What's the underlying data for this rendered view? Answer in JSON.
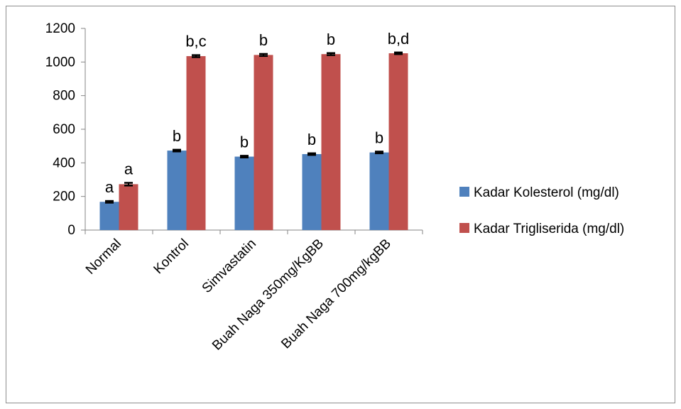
{
  "chart_data": {
    "type": "bar",
    "categories": [
      "Normal",
      "Kontrol",
      "Simvastatin",
      "Buah Naga 350mg/KgBB",
      "Buah Naga 700mg/kgBB"
    ],
    "series": [
      {
        "name": "Kadar Kolesterol (mg/dl)",
        "color": "#4F81BD",
        "values": [
          168,
          473,
          437,
          452,
          462
        ],
        "errors": [
          5,
          5,
          5,
          5,
          5
        ],
        "labels": [
          "a",
          "b",
          "b",
          "b",
          "b"
        ]
      },
      {
        "name": "Kadar Trigliserida (mg/dl)",
        "color": "#C0504D",
        "values": [
          273,
          1035,
          1042,
          1047,
          1052
        ],
        "errors": [
          8,
          6,
          6,
          6,
          5
        ],
        "labels": [
          "a",
          "b,c",
          "b",
          "b",
          "b,d"
        ]
      }
    ],
    "ylim": [
      0,
      1200
    ],
    "yticks": [
      0,
      200,
      400,
      600,
      800,
      1000,
      1200
    ],
    "grid": false,
    "legend_position": "right"
  }
}
